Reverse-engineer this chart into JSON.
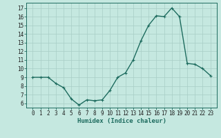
{
  "x": [
    0,
    1,
    2,
    3,
    4,
    5,
    6,
    7,
    8,
    9,
    10,
    11,
    12,
    13,
    14,
    15,
    16,
    17,
    18,
    19,
    20,
    21,
    22,
    23
  ],
  "y": [
    9.0,
    9.0,
    9.0,
    8.3,
    7.8,
    6.5,
    5.8,
    6.4,
    6.3,
    6.4,
    7.5,
    9.0,
    9.5,
    11.0,
    13.2,
    15.0,
    16.1,
    16.0,
    17.0,
    16.0,
    10.6,
    10.5,
    10.0,
    9.2
  ],
  "line_color": "#1d6b5e",
  "marker": "+",
  "marker_size": 3,
  "marker_linewidth": 0.8,
  "bg_color": "#c5e8e0",
  "grid_color": "#a8cdc6",
  "xlabel": "Humidex (Indice chaleur)",
  "ylim": [
    5.5,
    17.6
  ],
  "yticks": [
    6,
    7,
    8,
    9,
    10,
    11,
    12,
    13,
    14,
    15,
    16,
    17
  ],
  "xticks": [
    0,
    1,
    2,
    3,
    4,
    5,
    6,
    7,
    8,
    9,
    10,
    11,
    12,
    13,
    14,
    15,
    16,
    17,
    18,
    19,
    20,
    21,
    22,
    23
  ],
  "tick_label_fontsize": 5.5,
  "xlabel_fontsize": 6.5,
  "line_width": 1.0
}
